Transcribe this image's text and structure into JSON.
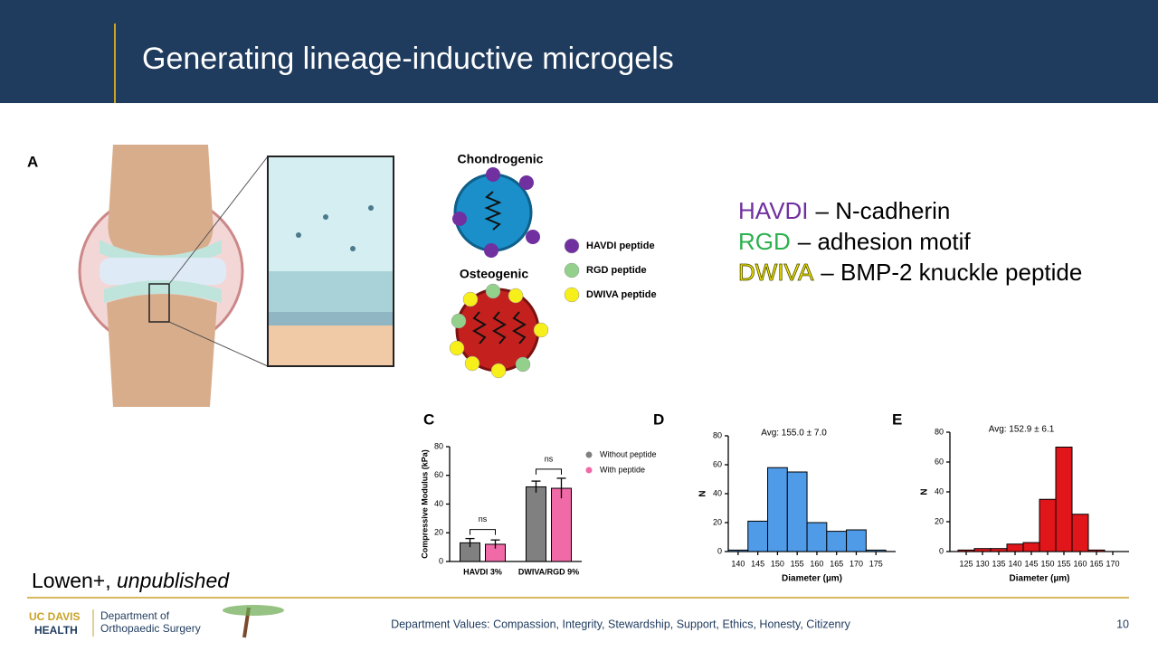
{
  "header": {
    "title": "Generating lineage-inductive microgels"
  },
  "panel_a": "A",
  "diagram": {
    "chondrogenic": "Chondrogenic",
    "osteogenic": "Osteogenic",
    "legend": [
      {
        "label": "HAVDI peptide",
        "color": "#7030a0"
      },
      {
        "label": "RGD peptide",
        "color": "#93d08c"
      },
      {
        "label": "DWIVA peptide",
        "color": "#f7ef1a"
      }
    ]
  },
  "key": [
    {
      "term": "HAVDI",
      "desc": "– N-cadherin",
      "color": "#7030a0"
    },
    {
      "term": "RGD",
      "desc": "– adhesion motif",
      "color": "#2db04e"
    },
    {
      "term": "DWIVA",
      "desc": "– BMP-2 knuckle peptide",
      "color": "#f2e600"
    }
  ],
  "chart_data": [
    {
      "type": "bar",
      "panel": "C",
      "ylabel": "Compressive Modulus (kPa)",
      "categories": [
        "HAVDI 3%",
        "DWIVA/RGD 9%"
      ],
      "series": [
        {
          "name": "Without peptide",
          "color": "#808080",
          "values": [
            13,
            52
          ],
          "errors": [
            3,
            4
          ]
        },
        {
          "name": "With peptide",
          "color": "#f06aa8",
          "values": [
            12,
            51
          ],
          "errors": [
            3,
            7
          ]
        }
      ],
      "ylim": [
        0,
        80
      ],
      "yticks": [
        0,
        20,
        40,
        60,
        80
      ],
      "annotations": [
        "ns",
        "ns"
      ],
      "legend": "upper right"
    },
    {
      "type": "histogram",
      "panel": "D",
      "note": "Avg: 155.0 ± 7.0",
      "xlabel": "Diameter (µm)",
      "ylabel": "N",
      "color": "#4f9be8",
      "bins": [
        137.5,
        142.5,
        147.5,
        152.5,
        157.5,
        162.5,
        167.5,
        172.5,
        177.5
      ],
      "values": [
        1,
        21,
        58,
        55,
        20,
        14,
        15,
        1
      ],
      "xlim": [
        137.5,
        180
      ],
      "xticks": [
        140,
        145,
        150,
        155,
        160,
        165,
        170,
        175
      ],
      "ylim": [
        0,
        80
      ],
      "yticks": [
        0,
        20,
        40,
        60,
        80
      ]
    },
    {
      "type": "histogram",
      "panel": "E",
      "note": "Avg: 152.9 ± 6.1",
      "xlabel": "Diameter (µm)",
      "ylabel": "N",
      "color": "#e0161b",
      "bins": [
        122.5,
        127.5,
        132.5,
        137.5,
        142.5,
        147.5,
        152.5,
        157.5,
        162.5,
        167.5
      ],
      "values": [
        1,
        2,
        2,
        5,
        6,
        35,
        70,
        25,
        1
      ],
      "xlim": [
        120,
        175
      ],
      "xticks": [
        125,
        130,
        135,
        140,
        145,
        150,
        155,
        160,
        165,
        170
      ],
      "ylim": [
        0,
        80
      ],
      "yticks": [
        0,
        20,
        40,
        60,
        80
      ]
    }
  ],
  "citation": {
    "author": "Lowen+,",
    "note": "unpublished"
  },
  "footer": {
    "logo_top": "UC DAVIS",
    "logo_bottom": "HEALTH",
    "department": [
      "Department of",
      "Orthopaedic Surgery"
    ],
    "values": "Department Values: Compassion, Integrity, Stewardship, Support, Ethics, Honesty, Citizenry",
    "page": "10"
  }
}
